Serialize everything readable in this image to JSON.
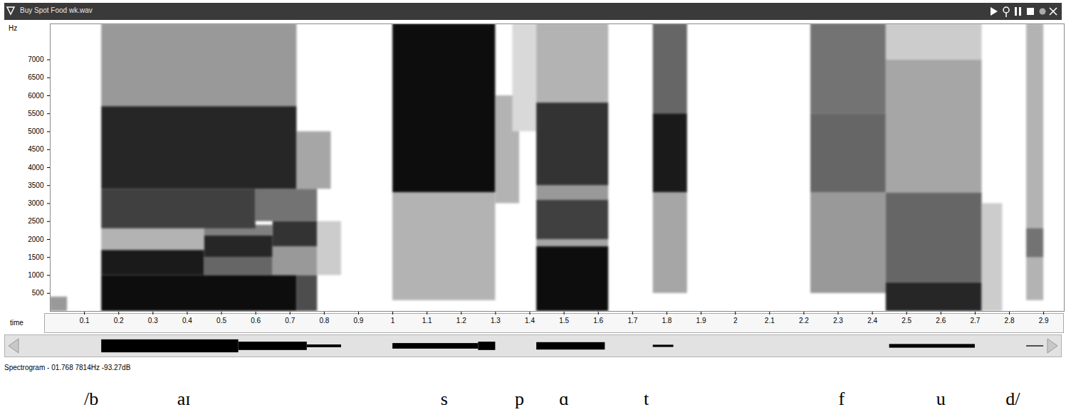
{
  "chart_data": {
    "type": "spectrogram",
    "title": "Buy Spot Food wk.wav",
    "xlabel": "time",
    "ylabel": "Hz",
    "caption": "Spectrogram - 01.768 7814Hz -93.27dB",
    "color": "#000000",
    "xlim": [
      0,
      2.96
    ],
    "ylim": [
      0,
      8000
    ],
    "xticks": [
      0.1,
      0.2,
      0.3,
      0.4,
      0.5,
      0.6,
      0.7,
      0.8,
      0.9,
      1.0,
      1.1,
      1.2,
      1.3,
      1.4,
      1.5,
      1.6,
      1.7,
      1.8,
      1.9,
      2.0,
      2.1,
      2.2,
      2.3,
      2.4,
      2.5,
      2.6,
      2.7,
      2.8,
      2.9
    ],
    "yticks": [
      500,
      1000,
      1500,
      2000,
      2500,
      3000,
      3500,
      4000,
      4500,
      5000,
      5500,
      6000,
      6500,
      7000
    ],
    "level_range": [
      0,
      1
    ],
    "cells": [
      {
        "x1": 0.0,
        "x2": 0.05,
        "y1": 0,
        "y2": 400,
        "level": 0.4
      },
      {
        "x1": 0.15,
        "x2": 0.72,
        "y1": 0,
        "y2": 1000,
        "level": 0.95
      },
      {
        "x1": 0.72,
        "x2": 0.78,
        "y1": 0,
        "y2": 1000,
        "level": 0.7
      },
      {
        "x1": 0.15,
        "x2": 0.45,
        "y1": 1000,
        "y2": 1700,
        "level": 0.9
      },
      {
        "x1": 0.45,
        "x2": 0.65,
        "y1": 1000,
        "y2": 1500,
        "level": 0.6
      },
      {
        "x1": 0.45,
        "x2": 0.65,
        "y1": 1500,
        "y2": 2100,
        "level": 0.85
      },
      {
        "x1": 0.65,
        "x2": 0.78,
        "y1": 1000,
        "y2": 1800,
        "level": 0.4
      },
      {
        "x1": 0.65,
        "x2": 0.78,
        "y1": 1800,
        "y2": 2500,
        "level": 0.8
      },
      {
        "x1": 0.15,
        "x2": 0.45,
        "y1": 1700,
        "y2": 2300,
        "level": 0.3
      },
      {
        "x1": 0.45,
        "x2": 0.65,
        "y1": 2100,
        "y2": 2400,
        "level": 0.5
      },
      {
        "x1": 0.15,
        "x2": 0.6,
        "y1": 2300,
        "y2": 3400,
        "level": 0.75
      },
      {
        "x1": 0.6,
        "x2": 0.78,
        "y1": 2500,
        "y2": 3400,
        "level": 0.55
      },
      {
        "x1": 0.15,
        "x2": 0.72,
        "y1": 3400,
        "y2": 5700,
        "level": 0.85
      },
      {
        "x1": 0.72,
        "x2": 0.82,
        "y1": 3400,
        "y2": 5000,
        "level": 0.35
      },
      {
        "x1": 0.15,
        "x2": 0.72,
        "y1": 5700,
        "y2": 8000,
        "level": 0.4
      },
      {
        "x1": 0.78,
        "x2": 0.85,
        "y1": 1000,
        "y2": 2500,
        "level": 0.2
      },
      {
        "x1": 1.0,
        "x2": 1.3,
        "y1": 3300,
        "y2": 8000,
        "level": 0.95
      },
      {
        "x1": 1.0,
        "x2": 1.3,
        "y1": 300,
        "y2": 3300,
        "level": 0.3
      },
      {
        "x1": 1.3,
        "x2": 1.37,
        "y1": 3000,
        "y2": 6000,
        "level": 0.3
      },
      {
        "x1": 1.35,
        "x2": 1.42,
        "y1": 5000,
        "y2": 8000,
        "level": 0.15
      },
      {
        "x1": 1.42,
        "x2": 1.63,
        "y1": 0,
        "y2": 1800,
        "level": 0.95
      },
      {
        "x1": 1.42,
        "x2": 1.63,
        "y1": 1800,
        "y2": 2000,
        "level": 0.35
      },
      {
        "x1": 1.42,
        "x2": 1.63,
        "y1": 2000,
        "y2": 3100,
        "level": 0.75
      },
      {
        "x1": 1.42,
        "x2": 1.63,
        "y1": 3100,
        "y2": 3500,
        "level": 0.4
      },
      {
        "x1": 1.42,
        "x2": 1.63,
        "y1": 3500,
        "y2": 5800,
        "level": 0.8
      },
      {
        "x1": 1.42,
        "x2": 1.63,
        "y1": 5800,
        "y2": 8000,
        "level": 0.3
      },
      {
        "x1": 1.76,
        "x2": 1.86,
        "y1": 3300,
        "y2": 5500,
        "level": 0.9
      },
      {
        "x1": 1.76,
        "x2": 1.86,
        "y1": 5500,
        "y2": 8000,
        "level": 0.6
      },
      {
        "x1": 1.76,
        "x2": 1.86,
        "y1": 500,
        "y2": 3300,
        "level": 0.35
      },
      {
        "x1": 2.22,
        "x2": 2.44,
        "y1": 500,
        "y2": 3300,
        "level": 0.4
      },
      {
        "x1": 2.22,
        "x2": 2.44,
        "y1": 3300,
        "y2": 5500,
        "level": 0.6
      },
      {
        "x1": 2.22,
        "x2": 2.44,
        "y1": 5500,
        "y2": 8000,
        "level": 0.55
      },
      {
        "x1": 2.44,
        "x2": 2.72,
        "y1": 0,
        "y2": 800,
        "level": 0.85
      },
      {
        "x1": 2.44,
        "x2": 2.72,
        "y1": 800,
        "y2": 3300,
        "level": 0.6
      },
      {
        "x1": 2.44,
        "x2": 2.72,
        "y1": 3300,
        "y2": 7000,
        "level": 0.35
      },
      {
        "x1": 2.44,
        "x2": 2.72,
        "y1": 7000,
        "y2": 8000,
        "level": 0.2
      },
      {
        "x1": 2.72,
        "x2": 2.78,
        "y1": 0,
        "y2": 3000,
        "level": 0.2
      },
      {
        "x1": 2.85,
        "x2": 2.9,
        "y1": 300,
        "y2": 8000,
        "level": 0.3
      },
      {
        "x1": 2.85,
        "x2": 2.9,
        "y1": 1500,
        "y2": 2300,
        "level": 0.55
      }
    ],
    "waveform_ylim": [
      -1,
      1
    ],
    "waveform": [
      {
        "x1": 0.15,
        "x2": 0.55,
        "amp": 0.7
      },
      {
        "x1": 0.55,
        "x2": 0.75,
        "amp": 0.45
      },
      {
        "x1": 0.75,
        "x2": 0.85,
        "amp": 0.15
      },
      {
        "x1": 1.0,
        "x2": 1.25,
        "amp": 0.3
      },
      {
        "x1": 1.25,
        "x2": 1.3,
        "amp": 0.45
      },
      {
        "x1": 1.42,
        "x2": 1.62,
        "amp": 0.4
      },
      {
        "x1": 1.76,
        "x2": 1.82,
        "amp": 0.12
      },
      {
        "x1": 2.45,
        "x2": 2.7,
        "amp": 0.2
      },
      {
        "x1": 2.85,
        "x2": 2.9,
        "amp": 0.05
      }
    ],
    "annotations": [
      {
        "text": "/b",
        "x": 0.12
      },
      {
        "text": "aɪ",
        "x": 0.39
      },
      {
        "text": "s",
        "x": 1.15
      },
      {
        "text": "p",
        "x": 1.37
      },
      {
        "text": "ɑ",
        "x": 1.5
      },
      {
        "text": "t",
        "x": 1.74
      },
      {
        "text": "f",
        "x": 2.31
      },
      {
        "text": "u",
        "x": 2.6
      },
      {
        "text": "d/",
        "x": 2.81
      }
    ]
  }
}
